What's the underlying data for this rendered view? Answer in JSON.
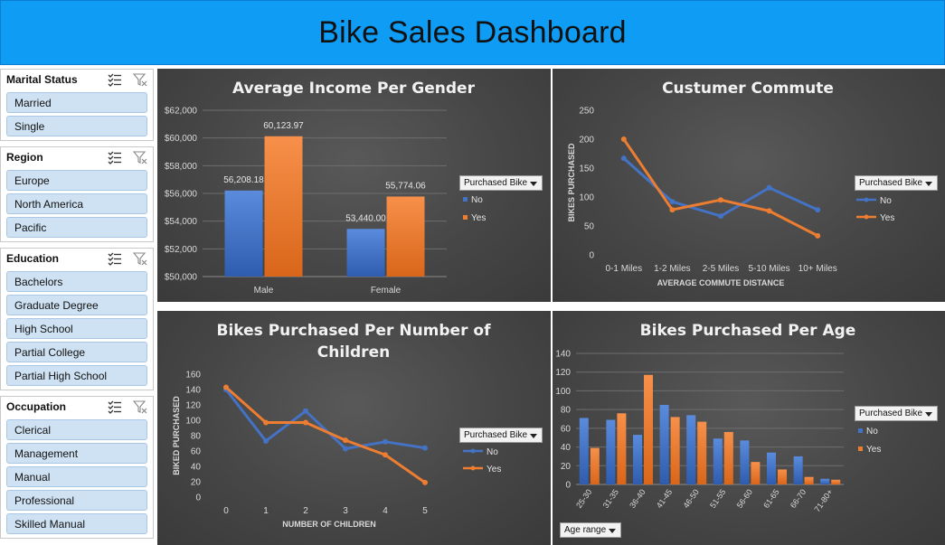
{
  "header": {
    "title": "Bike Sales Dashboard"
  },
  "slicers": [
    {
      "title": "Marital Status",
      "items": [
        "Married",
        "Single"
      ]
    },
    {
      "title": "Region",
      "items": [
        "Europe",
        "North America",
        "Pacific"
      ]
    },
    {
      "title": "Education",
      "items": [
        "Bachelors",
        "Graduate Degree",
        "High School",
        "Partial College",
        "Partial High School"
      ]
    },
    {
      "title": "Occupation",
      "items": [
        "Clerical",
        "Management",
        "Manual",
        "Professional",
        "Skilled Manual"
      ]
    }
  ],
  "colors": {
    "no": "#4472c4",
    "yes": "#ed7d31",
    "header": "#0f9cf5"
  },
  "legend": {
    "field": "Purchased Bike",
    "no": "No",
    "yes": "Yes"
  },
  "age_filter": "Age range",
  "chart_data": [
    {
      "type": "bar",
      "title": "Average Income Per Gender",
      "categories": [
        "Male",
        "Female"
      ],
      "series": [
        {
          "name": "No",
          "values": [
            56208.18,
            53440.0
          ]
        },
        {
          "name": "Yes",
          "values": [
            60123.97,
            55774.06
          ]
        }
      ],
      "data_labels": [
        [
          "56,208.18",
          "53,440.00"
        ],
        [
          "60,123.97",
          "55,774.06"
        ]
      ],
      "yticks": [
        "$50,000",
        "$52,000",
        "$54,000",
        "$56,000",
        "$58,000",
        "$60,000",
        "$62,000"
      ],
      "ylim": [
        50000,
        62000
      ],
      "grid": true,
      "legend_position": "right"
    },
    {
      "type": "line",
      "title": "Custumer Commute",
      "categories": [
        "0-1 Miles",
        "1-2 Miles",
        "2-5 Miles",
        "5-10 Miles",
        "10+ Miles"
      ],
      "series": [
        {
          "name": "No",
          "values": [
            167,
            92,
            67,
            116,
            78
          ]
        },
        {
          "name": "Yes",
          "values": [
            200,
            78,
            95,
            76,
            33
          ]
        }
      ],
      "xlabel": "AVERAGE COMMUTE DISTANCE",
      "ylabel": "BIKES PURCHASED",
      "yticks": [
        "0",
        "50",
        "100",
        "150",
        "200",
        "250"
      ],
      "ylim": [
        0,
        250
      ],
      "grid": false,
      "legend_position": "right"
    },
    {
      "type": "line",
      "title": "Bikes Purchased Per Number of Children",
      "categories": [
        "0",
        "1",
        "2",
        "3",
        "4",
        "5"
      ],
      "series": [
        {
          "name": "No",
          "values": [
            140,
            73,
            112,
            63,
            72,
            64
          ]
        },
        {
          "name": "Yes",
          "values": [
            143,
            97,
            97,
            74,
            55,
            19
          ]
        }
      ],
      "xlabel": "NUMBER OF CHILDREN",
      "ylabel": "BIKED PURCHASED",
      "yticks": [
        "0",
        "20",
        "40",
        "60",
        "80",
        "100",
        "120",
        "140",
        "160"
      ],
      "ylim": [
        0,
        160
      ],
      "grid": false,
      "legend_position": "right"
    },
    {
      "type": "bar",
      "title": "Bikes Purchased Per Age",
      "categories": [
        "25-30",
        "31-35",
        "36-40",
        "41-45",
        "46-50",
        "51-55",
        "56-60",
        "61-65",
        "66-70",
        "71-80+"
      ],
      "series": [
        {
          "name": "No",
          "values": [
            71,
            69,
            53,
            85,
            74,
            49,
            47,
            34,
            30,
            6
          ]
        },
        {
          "name": "Yes",
          "values": [
            39,
            76,
            117,
            72,
            67,
            56,
            24,
            16,
            8,
            5
          ]
        }
      ],
      "yticks": [
        "0",
        "20",
        "40",
        "60",
        "80",
        "100",
        "120",
        "140"
      ],
      "ylim": [
        0,
        140
      ],
      "grid": true,
      "legend_position": "right"
    }
  ]
}
